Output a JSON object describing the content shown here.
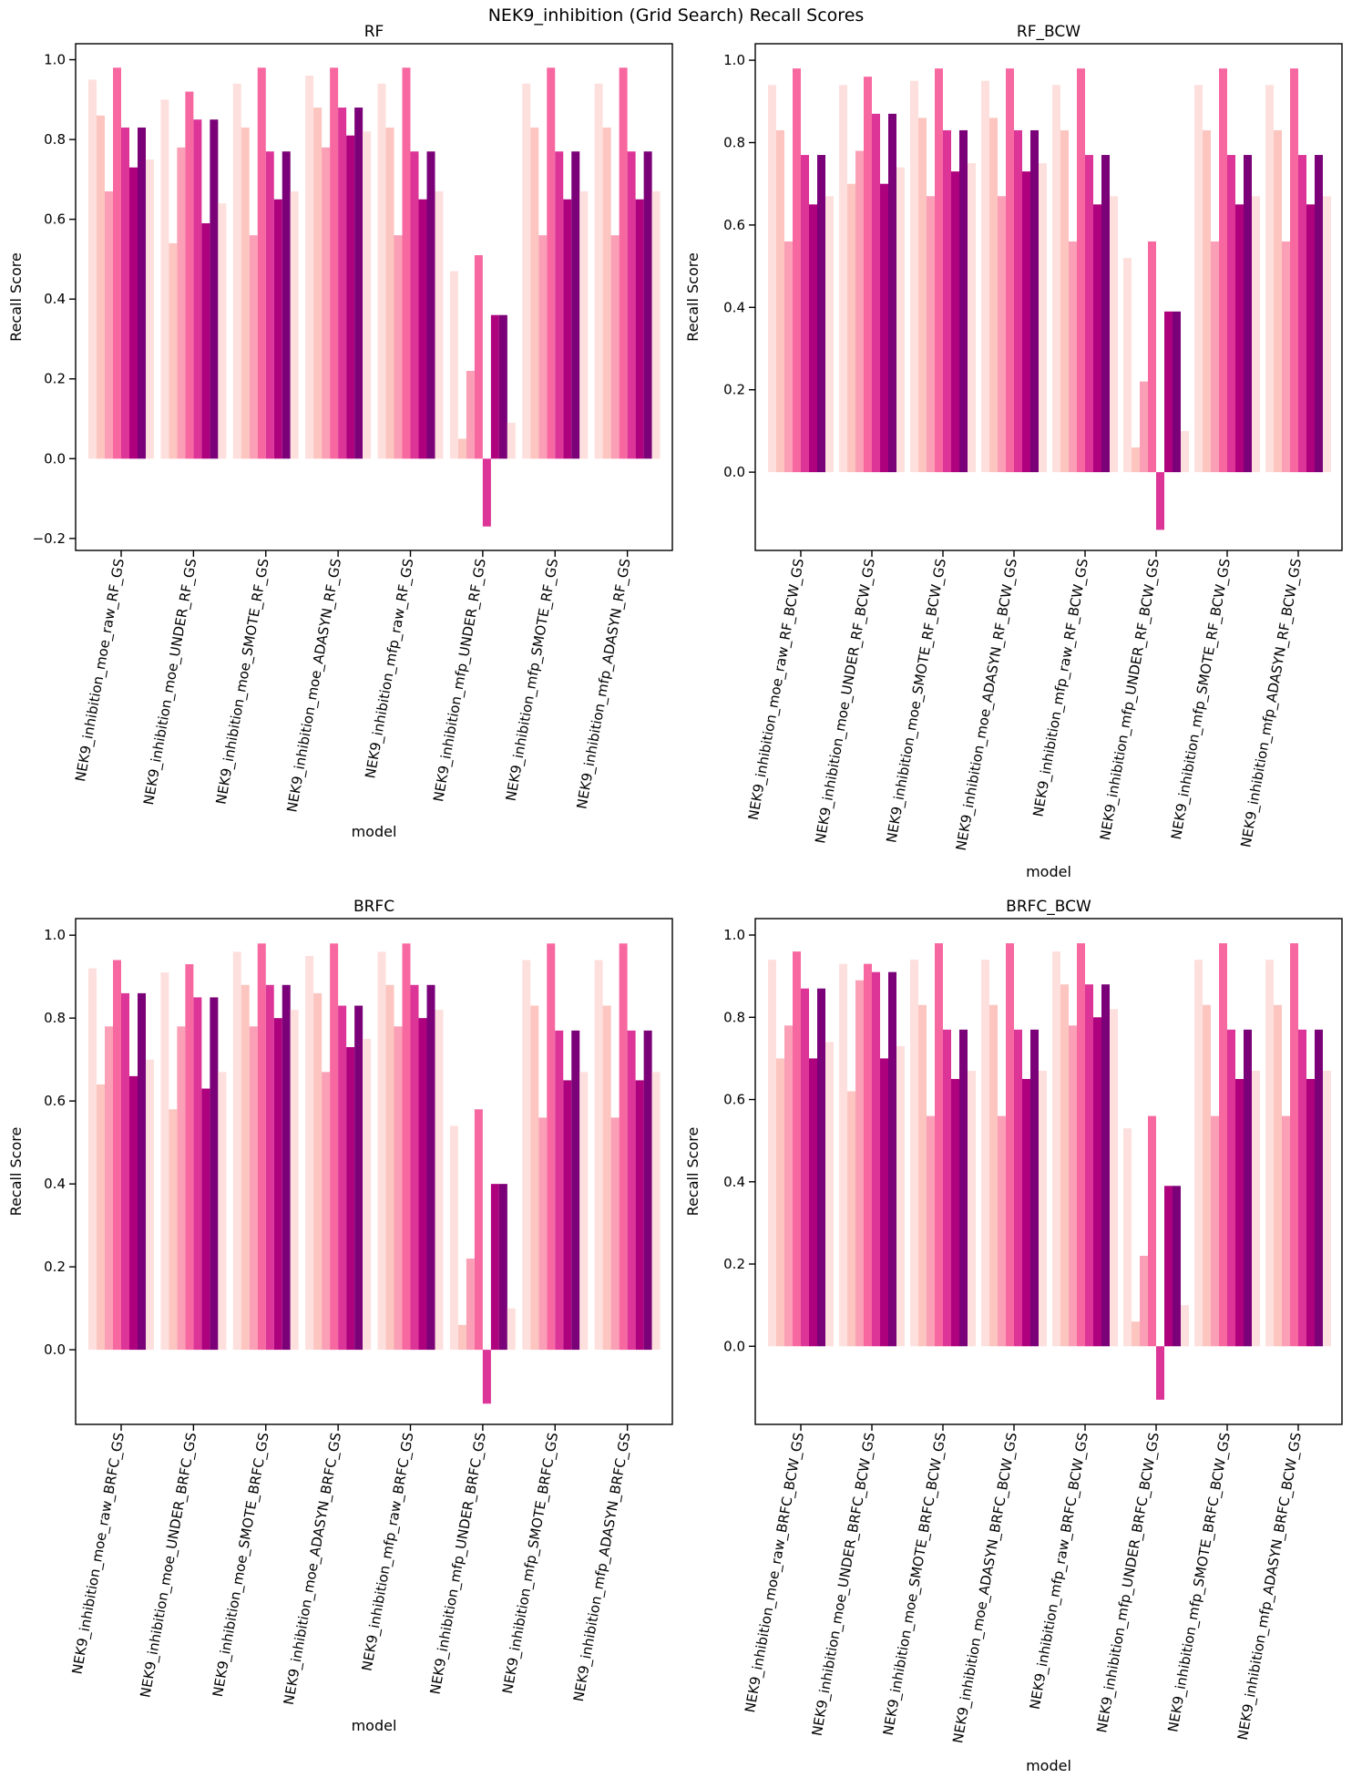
{
  "suptitle": "NEK9_inhibition (Grid Search) Recall Scores",
  "colors": [
    "#fde0dd",
    "#fcc5c0",
    "#fa9fb5",
    "#f768a1",
    "#dd3497",
    "#ae017e",
    "#7a0177"
  ],
  "chart_data": [
    {
      "type": "bar",
      "title": "RF",
      "xlabel": "model",
      "ylabel": "Recall Score",
      "ylim": [
        -0.23,
        1.04
      ],
      "yticks": [
        -0.2,
        0.0,
        0.2,
        0.4,
        0.6,
        0.8,
        1.0
      ],
      "ytick_labels": [
        "−0.2",
        "0.0",
        "0.2",
        "0.4",
        "0.6",
        "0.8",
        "1.0"
      ],
      "categories": [
        "NEK9_inhibition_moe_raw_RF_GS",
        "NEK9_inhibition_moe_UNDER_RF_GS",
        "NEK9_inhibition_moe_SMOTE_RF_GS",
        "NEK9_inhibition_moe_ADASYN_RF_GS",
        "NEK9_inhibition_mfp_raw_RF_GS",
        "NEK9_inhibition_mfp_UNDER_RF_GS",
        "NEK9_inhibition_mfp_SMOTE_RF_GS",
        "NEK9_inhibition_mfp_ADASYN_RF_GS"
      ],
      "series": [
        {
          "values": [
            0.95,
            0.9,
            0.94,
            0.96,
            0.94,
            0.47,
            0.94,
            0.94
          ]
        },
        {
          "values": [
            0.86,
            0.54,
            0.83,
            0.88,
            0.83,
            0.05,
            0.83,
            0.83
          ]
        },
        {
          "values": [
            0.67,
            0.78,
            0.56,
            0.78,
            0.56,
            0.22,
            0.56,
            0.56
          ]
        },
        {
          "values": [
            0.98,
            0.92,
            0.98,
            0.98,
            0.98,
            0.51,
            0.98,
            0.98
          ]
        },
        {
          "values": [
            0.83,
            0.85,
            0.77,
            0.88,
            0.77,
            -0.17,
            0.77,
            0.77
          ]
        },
        {
          "values": [
            0.73,
            0.59,
            0.65,
            0.81,
            0.65,
            0.36,
            0.65,
            0.65
          ]
        },
        {
          "values": [
            0.83,
            0.85,
            0.77,
            0.88,
            0.77,
            0.36,
            0.77,
            0.77
          ]
        },
        {
          "values": [
            0.75,
            0.64,
            0.67,
            0.82,
            0.67,
            0.09,
            0.67,
            0.67
          ]
        }
      ]
    },
    {
      "type": "bar",
      "title": "RF_BCW",
      "xlabel": "model",
      "ylabel": "Recall Score",
      "ylim": [
        -0.19,
        1.04
      ],
      "yticks": [
        0.0,
        0.2,
        0.4,
        0.6,
        0.8,
        1.0
      ],
      "ytick_labels": [
        "0.0",
        "0.2",
        "0.4",
        "0.6",
        "0.8",
        "1.0"
      ],
      "categories": [
        "NEK9_inhibition_moe_raw_RF_BCW_GS",
        "NEK9_inhibition_moe_UNDER_RF_BCW_GS",
        "NEK9_inhibition_moe_SMOTE_RF_BCW_GS",
        "NEK9_inhibition_moe_ADASYN_RF_BCW_GS",
        "NEK9_inhibition_mfp_raw_RF_BCW_GS",
        "NEK9_inhibition_mfp_UNDER_RF_BCW_GS",
        "NEK9_inhibition_mfp_SMOTE_RF_BCW_GS",
        "NEK9_inhibition_mfp_ADASYN_RF_BCW_GS"
      ],
      "series": [
        {
          "values": [
            0.94,
            0.94,
            0.95,
            0.95,
            0.94,
            0.52,
            0.94,
            0.94
          ]
        },
        {
          "values": [
            0.83,
            0.7,
            0.86,
            0.86,
            0.83,
            0.06,
            0.83,
            0.83
          ]
        },
        {
          "values": [
            0.56,
            0.78,
            0.67,
            0.67,
            0.56,
            0.22,
            0.56,
            0.56
          ]
        },
        {
          "values": [
            0.98,
            0.96,
            0.98,
            0.98,
            0.98,
            0.56,
            0.98,
            0.98
          ]
        },
        {
          "values": [
            0.77,
            0.87,
            0.83,
            0.83,
            0.77,
            -0.14,
            0.77,
            0.77
          ]
        },
        {
          "values": [
            0.65,
            0.7,
            0.73,
            0.73,
            0.65,
            0.39,
            0.65,
            0.65
          ]
        },
        {
          "values": [
            0.77,
            0.87,
            0.83,
            0.83,
            0.77,
            0.39,
            0.77,
            0.77
          ]
        },
        {
          "values": [
            0.67,
            0.74,
            0.75,
            0.75,
            0.67,
            0.1,
            0.67,
            0.67
          ]
        }
      ]
    },
    {
      "type": "bar",
      "title": "BRFC",
      "xlabel": "model",
      "ylabel": "Recall Score",
      "ylim": [
        -0.18,
        1.04
      ],
      "yticks": [
        0.0,
        0.2,
        0.4,
        0.6,
        0.8,
        1.0
      ],
      "ytick_labels": [
        "0.0",
        "0.2",
        "0.4",
        "0.6",
        "0.8",
        "1.0"
      ],
      "categories": [
        "NEK9_inhibition_moe_raw_BRFC_GS",
        "NEK9_inhibition_moe_UNDER_BRFC_GS",
        "NEK9_inhibition_moe_SMOTE_BRFC_GS",
        "NEK9_inhibition_moe_ADASYN_BRFC_GS",
        "NEK9_inhibition_mfp_raw_BRFC_GS",
        "NEK9_inhibition_mfp_UNDER_BRFC_GS",
        "NEK9_inhibition_mfp_SMOTE_BRFC_GS",
        "NEK9_inhibition_mfp_ADASYN_BRFC_GS"
      ],
      "series": [
        {
          "values": [
            0.92,
            0.91,
            0.96,
            0.95,
            0.96,
            0.54,
            0.94,
            0.94
          ]
        },
        {
          "values": [
            0.64,
            0.58,
            0.88,
            0.86,
            0.88,
            0.06,
            0.83,
            0.83
          ]
        },
        {
          "values": [
            0.78,
            0.78,
            0.78,
            0.67,
            0.78,
            0.22,
            0.56,
            0.56
          ]
        },
        {
          "values": [
            0.94,
            0.93,
            0.98,
            0.98,
            0.98,
            0.58,
            0.98,
            0.98
          ]
        },
        {
          "values": [
            0.86,
            0.85,
            0.88,
            0.83,
            0.88,
            -0.13,
            0.77,
            0.77
          ]
        },
        {
          "values": [
            0.66,
            0.63,
            0.8,
            0.73,
            0.8,
            0.4,
            0.65,
            0.65
          ]
        },
        {
          "values": [
            0.86,
            0.85,
            0.88,
            0.83,
            0.88,
            0.4,
            0.77,
            0.77
          ]
        },
        {
          "values": [
            0.7,
            0.67,
            0.82,
            0.75,
            0.82,
            0.1,
            0.67,
            0.67
          ]
        }
      ]
    },
    {
      "type": "bar",
      "title": "BRFC_BCW",
      "xlabel": "model",
      "ylabel": "Recall Score",
      "ylim": [
        -0.19,
        1.04
      ],
      "yticks": [
        0.0,
        0.2,
        0.4,
        0.6,
        0.8,
        1.0
      ],
      "ytick_labels": [
        "0.0",
        "0.2",
        "0.4",
        "0.6",
        "0.8",
        "1.0"
      ],
      "categories": [
        "NEK9_inhibition_moe_raw_BRFC_BCW_GS",
        "NEK9_inhibition_moe_UNDER_BRFC_BCW_GS",
        "NEK9_inhibition_moe_SMOTE_BRFC_BCW_GS",
        "NEK9_inhibition_moe_ADASYN_BRFC_BCW_GS",
        "NEK9_inhibition_mfp_raw_BRFC_BCW_GS",
        "NEK9_inhibition_mfp_UNDER_BRFC_BCW_GS",
        "NEK9_inhibition_mfp_SMOTE_BRFC_BCW_GS",
        "NEK9_inhibition_mfp_ADASYN_BRFC_BCW_GS"
      ],
      "series": [
        {
          "values": [
            0.94,
            0.93,
            0.94,
            0.94,
            0.96,
            0.53,
            0.94,
            0.94
          ]
        },
        {
          "values": [
            0.7,
            0.62,
            0.83,
            0.83,
            0.88,
            0.06,
            0.83,
            0.83
          ]
        },
        {
          "values": [
            0.78,
            0.89,
            0.56,
            0.56,
            0.78,
            0.22,
            0.56,
            0.56
          ]
        },
        {
          "values": [
            0.96,
            0.93,
            0.98,
            0.98,
            0.98,
            0.56,
            0.98,
            0.98
          ]
        },
        {
          "values": [
            0.87,
            0.91,
            0.77,
            0.77,
            0.88,
            -0.13,
            0.77,
            0.77
          ]
        },
        {
          "values": [
            0.7,
            0.7,
            0.65,
            0.65,
            0.8,
            0.39,
            0.65,
            0.65
          ]
        },
        {
          "values": [
            0.87,
            0.91,
            0.77,
            0.77,
            0.88,
            0.39,
            0.77,
            0.77
          ]
        },
        {
          "values": [
            0.74,
            0.73,
            0.67,
            0.67,
            0.82,
            0.1,
            0.67,
            0.67
          ]
        }
      ]
    }
  ]
}
